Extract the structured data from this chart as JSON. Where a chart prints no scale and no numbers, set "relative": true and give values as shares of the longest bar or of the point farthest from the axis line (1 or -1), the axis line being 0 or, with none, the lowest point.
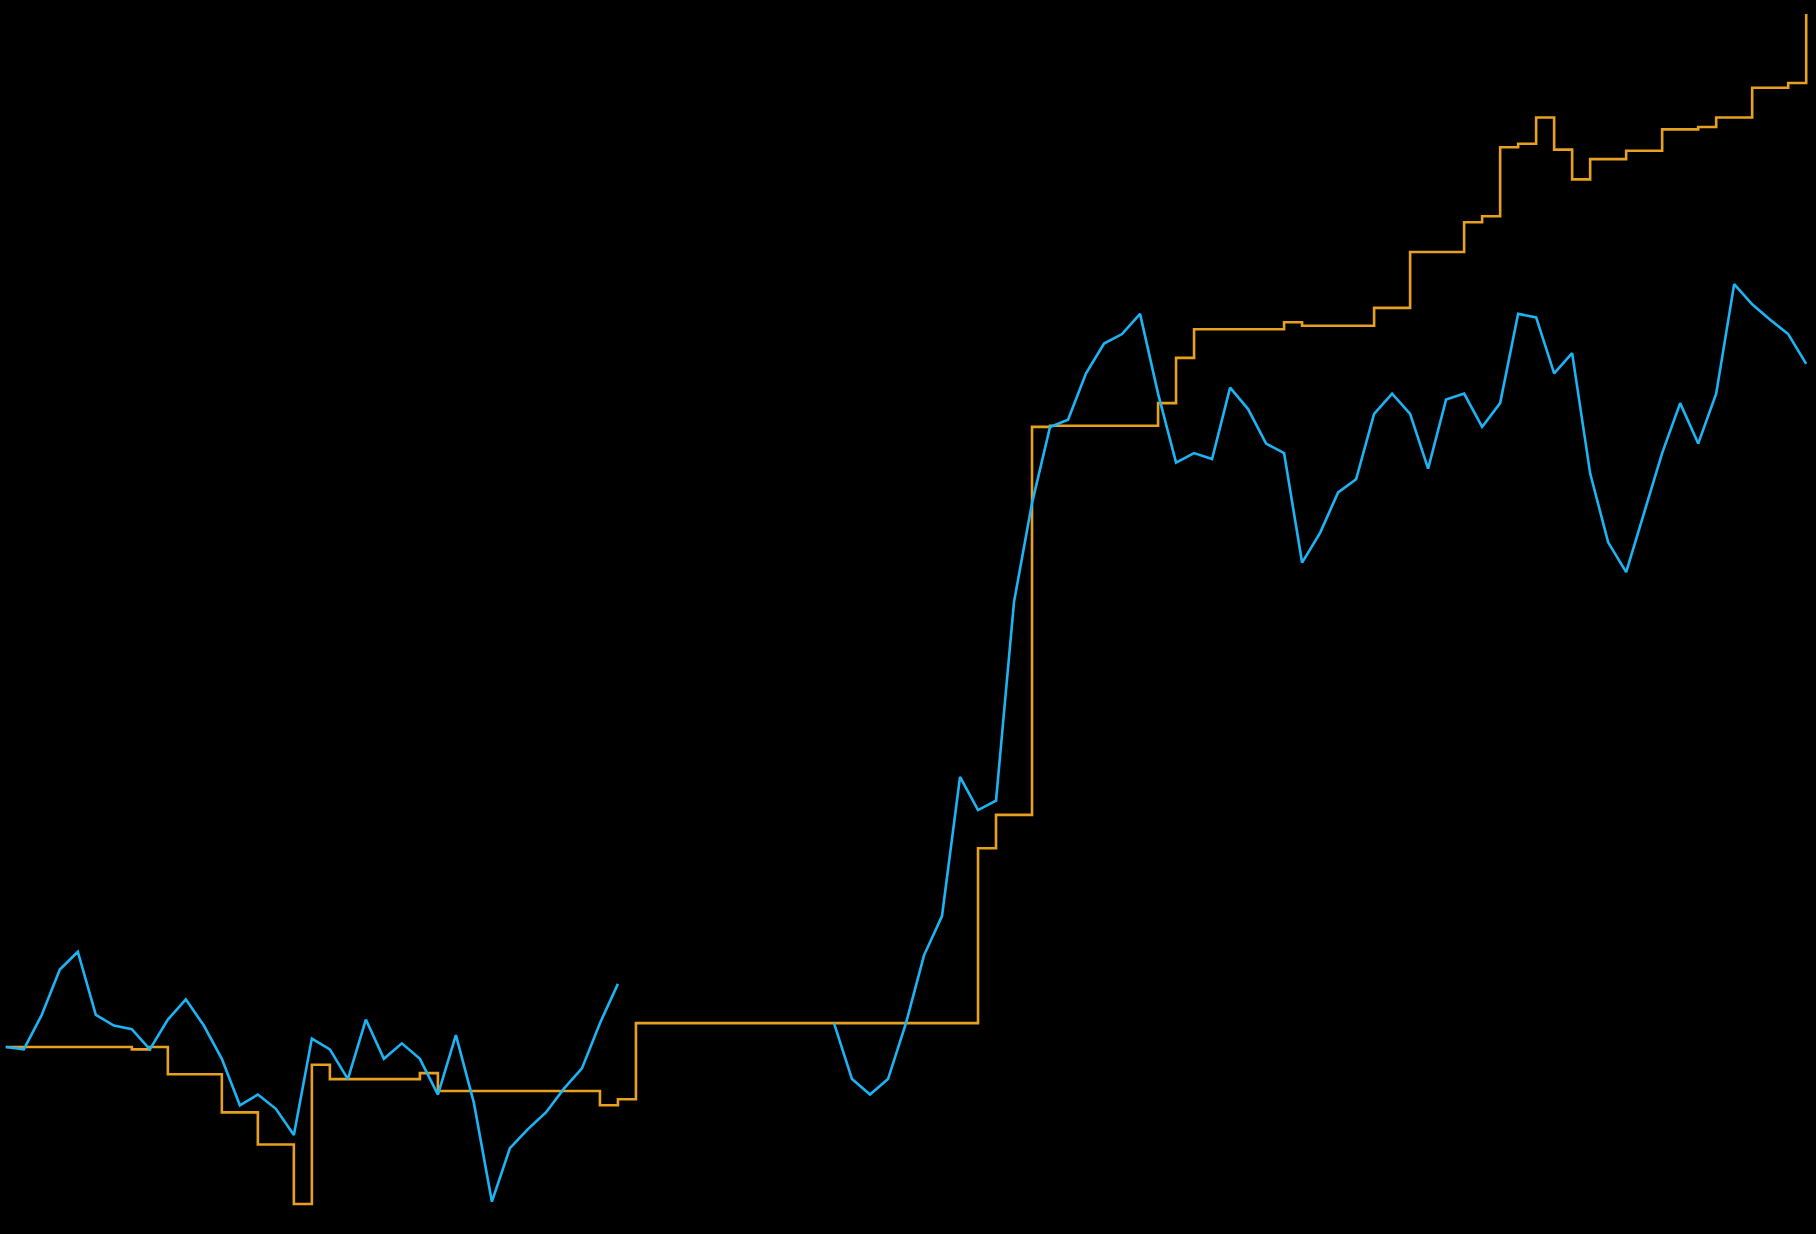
{
  "chart_data": {
    "type": "line",
    "relative": true,
    "categories": [
      null,
      null,
      null,
      null,
      null,
      null,
      null,
      null,
      null,
      null,
      null,
      null,
      null,
      null,
      null,
      null,
      null,
      null,
      null,
      null,
      null,
      null,
      null,
      null,
      null,
      null,
      null,
      null,
      null,
      null,
      null,
      null,
      null,
      null,
      null,
      null,
      null,
      null,
      null,
      null,
      null,
      null,
      null,
      null,
      null,
      null,
      null,
      null,
      null,
      null,
      null,
      null,
      null,
      null,
      null,
      null,
      null,
      null,
      null,
      null,
      null,
      null,
      null,
      null,
      null,
      null,
      null,
      null,
      null,
      null,
      null,
      null,
      null,
      null,
      null,
      null,
      null,
      null,
      null,
      null,
      null,
      null,
      null,
      null,
      null,
      null,
      null,
      null,
      null,
      null,
      null,
      null,
      null,
      null,
      null,
      null,
      null,
      null,
      null,
      null,
      null
    ],
    "series": [
      {
        "type": "step",
        "color": "#e8a020",
        "values": [
          0.132,
          0.132,
          0.132,
          0.132,
          0.132,
          0.132,
          0.132,
          0.13,
          0.132,
          0.109,
          0.109,
          0.109,
          0.077,
          0.077,
          0.05,
          0.05,
          0,
          0.117,
          0.105,
          0.105,
          0.105,
          0.105,
          0.105,
          0.11,
          0.095,
          0.095,
          0.095,
          0.095,
          0.095,
          0.095,
          0.095,
          0.095,
          0.095,
          0.083,
          0.088,
          0.152,
          0.152,
          0.152,
          0.152,
          0.152,
          0.152,
          0.152,
          0.152,
          0.152,
          0.152,
          0.152,
          0.152,
          0.152,
          0.152,
          0.152,
          0.152,
          0.152,
          0.152,
          0.152,
          0.299,
          0.327,
          0.327,
          0.653,
          0.654,
          0.654,
          0.654,
          0.654,
          0.654,
          0.654,
          0.673,
          0.711,
          0.735,
          0.735,
          0.735,
          0.735,
          0.735,
          0.741,
          0.738,
          0.738,
          0.738,
          0.738,
          0.753,
          0.753,
          0.8,
          0.8,
          0.8,
          0.825,
          0.83,
          0.888,
          0.891,
          0.913,
          0.886,
          0.861,
          0.878,
          0.878,
          0.885,
          0.885,
          0.903,
          0.903,
          0.905,
          0.913,
          0.913,
          0.938,
          0.938,
          0.942,
          1.0
        ]
      },
      {
        "color": "#1cb4f5",
        "values": [
          0.132,
          0.13,
          0.159,
          0.197,
          0.212,
          0.159,
          0.15,
          0.147,
          0.13,
          0.155,
          0.172,
          0.15,
          0.122,
          0.083,
          0.092,
          0.08,
          0.058,
          0.139,
          0.13,
          0.105,
          0.155,
          0.122,
          0.135,
          0.122,
          0.092,
          0.142,
          0.085,
          0.002,
          0.047,
          0.063,
          0.077,
          0.097,
          0.114,
          0.152,
          0.185,
          null,
          null,
          null,
          null,
          null,
          null,
          null,
          null,
          null,
          null,
          null,
          0.152,
          0.105,
          0.092,
          0.105,
          0.152,
          0.209,
          0.242,
          0.359,
          0.331,
          0.339,
          0.506,
          0.589,
          0.653,
          0.659,
          0.698,
          0.723,
          0.731,
          0.748,
          0.681,
          0.623,
          0.631,
          0.626,
          0.686,
          0.668,
          0.639,
          0.631,
          0.539,
          0.564,
          0.598,
          0.609,
          0.664,
          0.681,
          0.664,
          0.618,
          0.676,
          0.681,
          0.653,
          0.673,
          0.748,
          0.745,
          0.698,
          0.715,
          0.614,
          0.556,
          0.531,
          0.581,
          0.631,
          0.673,
          0.639,
          0.681,
          0.773,
          0.756,
          0.743,
          0.731,
          0.706
        ]
      }
    ]
  }
}
